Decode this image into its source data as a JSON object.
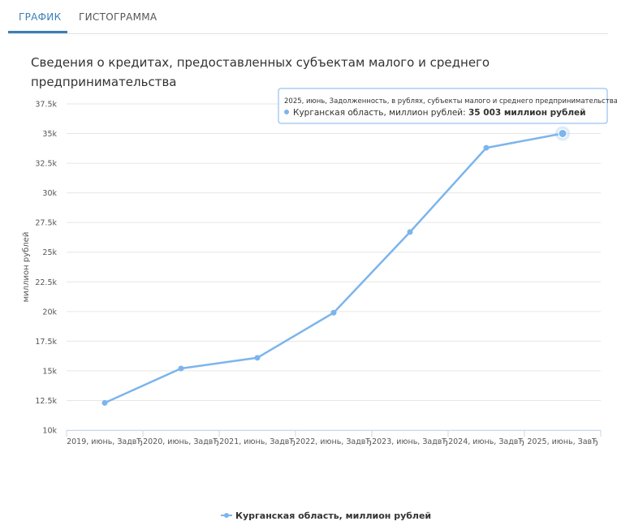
{
  "tabs": [
    {
      "label": "ГРАФИК",
      "active": true
    },
    {
      "label": "ГИСТОГРАММА",
      "active": false
    }
  ],
  "colors": {
    "series": "#7cb5ec",
    "accent": "#3a7fb8",
    "grid": "#e6e6e6"
  },
  "tooltip": {
    "header": "2025, июнь, Задолженность, в рублях, субъекты малого и среднего предпринимательства",
    "series_label": "Курганская область, миллион рублей: ",
    "value_text": "35 003 миллион рублей"
  },
  "chart_data": {
    "type": "line",
    "title_lines": [
      "Сведения о кредитах, предоставленных субъектам малого и среднего",
      "предпринимательства"
    ],
    "ylabel": "миллион рублей",
    "xlabel": "",
    "categories": [
      "2019, июнь, ЗадвЂ",
      "2020, июнь, ЗадвЂ",
      "2021, июнь, ЗадвЂ",
      "2022, июнь, ЗадвЂ",
      "2023, июнь, ЗадвЂ",
      "2024, июнь, ЗадвЂ",
      "2025, июнь, ЗавЂ"
    ],
    "ylim": [
      10000,
      37500
    ],
    "yticks": [
      10000,
      12500,
      15000,
      17500,
      20000,
      22500,
      25000,
      27500,
      30000,
      32500,
      35000,
      37500
    ],
    "ytick_labels": [
      "10k",
      "12.5k",
      "15k",
      "17.5k",
      "20k",
      "22.5k",
      "25k",
      "27.5k",
      "30k",
      "32.5k",
      "35k",
      "37.5k"
    ],
    "grid": true,
    "legend_position": "bottom-center",
    "series": [
      {
        "name": "Курганская область, миллион рублей",
        "values": [
          12300,
          15200,
          16100,
          19900,
          26700,
          33800,
          35003
        ]
      }
    ]
  }
}
